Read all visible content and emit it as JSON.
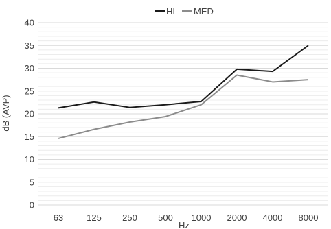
{
  "chart_data": {
    "type": "line",
    "title": "",
    "xlabel": "Hz",
    "ylabel": "dB (AVP)",
    "categories": [
      "63",
      "125",
      "250",
      "500",
      "1000",
      "2000",
      "4000",
      "8000"
    ],
    "series": [
      {
        "name": "HI",
        "color": "#1a1a1a",
        "values": [
          21.3,
          22.6,
          21.4,
          22.0,
          22.7,
          29.8,
          29.3,
          35.0
        ]
      },
      {
        "name": "MED",
        "color": "#8c8c8c",
        "values": [
          14.6,
          16.6,
          18.2,
          19.4,
          22.0,
          28.5,
          27.0,
          27.5
        ]
      }
    ],
    "ylim": [
      0,
      40
    ],
    "yticks": [
      0,
      5,
      10,
      15,
      20,
      25,
      30,
      35,
      40
    ],
    "grid": true,
    "legend_position": "top-center"
  }
}
